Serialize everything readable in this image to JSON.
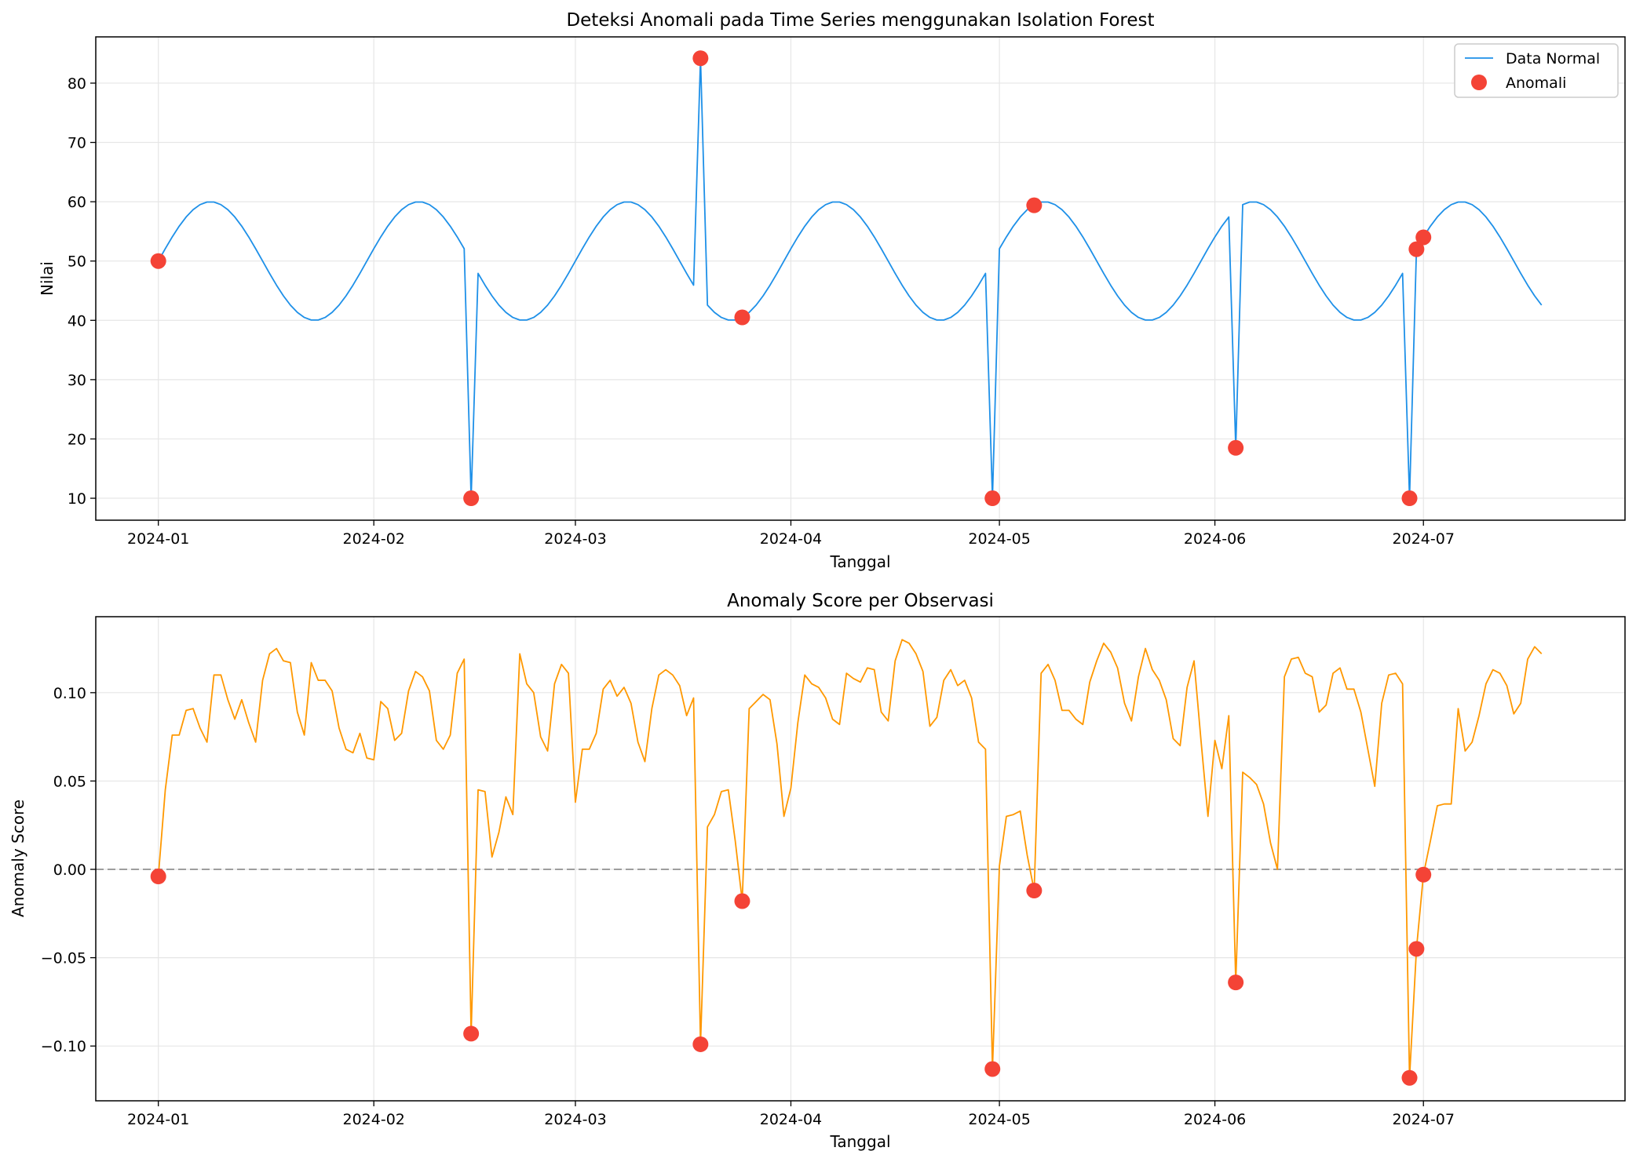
{
  "colors": {
    "normal_line": "#1e90e8",
    "anomaly_marker": "#f44336",
    "score_line": "#ff9800",
    "zero_line": "#9e9e9e",
    "grid": "#e6e6e6"
  },
  "chart_data": [
    {
      "type": "line",
      "title": "Deteksi Anomali pada Time Series menggunakan Isolation Forest",
      "xlabel": "Tanggal",
      "ylabel": "Nilai",
      "x_start_date": "2024-01-01",
      "x_step_days": 1,
      "n_points": 200,
      "xlim_days": [
        -9,
        211
      ],
      "ylim": [
        6.3,
        87.8
      ],
      "x_ticks": [
        {
          "day": 0,
          "label": "2024-01"
        },
        {
          "day": 31,
          "label": "2024-02"
        },
        {
          "day": 60,
          "label": "2024-03"
        },
        {
          "day": 91,
          "label": "2024-04"
        },
        {
          "day": 121,
          "label": "2024-05"
        },
        {
          "day": 152,
          "label": "2024-06"
        },
        {
          "day": 182,
          "label": "2024-07"
        }
      ],
      "y_ticks": [
        10,
        20,
        30,
        40,
        50,
        60,
        70,
        80
      ],
      "grid": true,
      "legend": {
        "position": "top-right",
        "entries": [
          "Data Normal",
          "Anomali"
        ]
      },
      "base_signal": {
        "mean": 50,
        "amplitude": 10,
        "period_days": 30
      },
      "spikes": [
        {
          "day": 45,
          "value": 10
        },
        {
          "day": 78,
          "value": 84.2
        },
        {
          "day": 120,
          "value": 10
        },
        {
          "day": 155,
          "value": 18.5
        },
        {
          "day": 180,
          "value": 10
        }
      ],
      "anomalies": [
        {
          "day": 0,
          "value": 50
        },
        {
          "day": 45,
          "value": 10
        },
        {
          "day": 78,
          "value": 84.2
        },
        {
          "day": 84,
          "value": 40.5
        },
        {
          "day": 120,
          "value": 10
        },
        {
          "day": 126,
          "value": 59.4
        },
        {
          "day": 155,
          "value": 18.5
        },
        {
          "day": 180,
          "value": 10
        },
        {
          "day": 181,
          "value": 52
        },
        {
          "day": 182,
          "value": 54
        }
      ]
    },
    {
      "type": "line",
      "title": "Anomaly Score per Observasi",
      "xlabel": "Tanggal",
      "ylabel": "Anomaly Score",
      "xlim_days": [
        -9,
        211
      ],
      "ylim": [
        -0.131,
        0.143
      ],
      "y_ticks": [
        {
          "value": -0.1,
          "label": "−0.10"
        },
        {
          "value": -0.05,
          "label": "−0.05"
        },
        {
          "value": 0.0,
          "label": "0.00"
        },
        {
          "value": 0.05,
          "label": "0.05"
        },
        {
          "value": 0.1,
          "label": "0.10"
        }
      ],
      "reference_line": 0,
      "grid": true,
      "score_points": [
        [
          0,
          -0.004
        ],
        [
          1,
          0.045
        ],
        [
          2,
          0.076
        ],
        [
          3,
          0.076
        ],
        [
          4,
          0.09
        ],
        [
          5,
          0.091
        ],
        [
          6,
          0.08
        ],
        [
          7,
          0.072
        ],
        [
          8,
          0.11
        ],
        [
          9,
          0.11
        ],
        [
          10,
          0.096
        ],
        [
          11,
          0.085
        ],
        [
          12,
          0.096
        ],
        [
          13,
          0.083
        ],
        [
          14,
          0.072
        ],
        [
          15,
          0.107
        ],
        [
          16,
          0.122
        ],
        [
          17,
          0.125
        ],
        [
          18,
          0.118
        ],
        [
          19,
          0.117
        ],
        [
          20,
          0.089
        ],
        [
          21,
          0.076
        ],
        [
          22,
          0.117
        ],
        [
          23,
          0.107
        ],
        [
          24,
          0.107
        ],
        [
          25,
          0.101
        ],
        [
          26,
          0.08
        ],
        [
          27,
          0.068
        ],
        [
          28,
          0.066
        ],
        [
          29,
          0.077
        ],
        [
          30,
          0.063
        ],
        [
          31,
          0.062
        ],
        [
          32,
          0.095
        ],
        [
          33,
          0.091
        ],
        [
          34,
          0.073
        ],
        [
          35,
          0.077
        ],
        [
          36,
          0.101
        ],
        [
          37,
          0.112
        ],
        [
          38,
          0.109
        ],
        [
          39,
          0.101
        ],
        [
          40,
          0.073
        ],
        [
          41,
          0.068
        ],
        [
          42,
          0.076
        ],
        [
          43,
          0.111
        ],
        [
          44,
          0.119
        ],
        [
          45,
          -0.093
        ],
        [
          46,
          0.045
        ],
        [
          47,
          0.044
        ],
        [
          48,
          0.007
        ],
        [
          49,
          0.021
        ],
        [
          50,
          0.041
        ],
        [
          51,
          0.031
        ],
        [
          52,
          0.122
        ],
        [
          53,
          0.105
        ],
        [
          54,
          0.1
        ],
        [
          55,
          0.075
        ],
        [
          56,
          0.067
        ],
        [
          57,
          0.105
        ],
        [
          58,
          0.116
        ],
        [
          59,
          0.111
        ],
        [
          60,
          0.038
        ],
        [
          61,
          0.068
        ],
        [
          62,
          0.068
        ],
        [
          63,
          0.077
        ],
        [
          64,
          0.102
        ],
        [
          65,
          0.107
        ],
        [
          66,
          0.098
        ],
        [
          67,
          0.103
        ],
        [
          68,
          0.094
        ],
        [
          69,
          0.072
        ],
        [
          70,
          0.061
        ],
        [
          71,
          0.091
        ],
        [
          72,
          0.11
        ],
        [
          73,
          0.113
        ],
        [
          74,
          0.11
        ],
        [
          75,
          0.104
        ],
        [
          76,
          0.087
        ],
        [
          77,
          0.097
        ],
        [
          78,
          -0.099
        ],
        [
          79,
          0.024
        ],
        [
          80,
          0.031
        ],
        [
          81,
          0.044
        ],
        [
          82,
          0.045
        ],
        [
          83,
          0.016
        ],
        [
          84,
          -0.018
        ],
        [
          85,
          0.091
        ],
        [
          86,
          0.095
        ],
        [
          87,
          0.099
        ],
        [
          88,
          0.096
        ],
        [
          89,
          0.071
        ],
        [
          90,
          0.03
        ],
        [
          91,
          0.046
        ],
        [
          92,
          0.083
        ],
        [
          93,
          0.11
        ],
        [
          94,
          0.105
        ],
        [
          95,
          0.103
        ],
        [
          96,
          0.097
        ],
        [
          97,
          0.085
        ],
        [
          98,
          0.082
        ],
        [
          99,
          0.111
        ],
        [
          100,
          0.108
        ],
        [
          101,
          0.106
        ],
        [
          102,
          0.114
        ],
        [
          103,
          0.113
        ],
        [
          104,
          0.089
        ],
        [
          105,
          0.084
        ],
        [
          106,
          0.118
        ],
        [
          107,
          0.13
        ],
        [
          108,
          0.128
        ],
        [
          109,
          0.122
        ],
        [
          110,
          0.112
        ],
        [
          111,
          0.081
        ],
        [
          112,
          0.086
        ],
        [
          113,
          0.107
        ],
        [
          114,
          0.113
        ],
        [
          115,
          0.104
        ],
        [
          116,
          0.107
        ],
        [
          117,
          0.097
        ],
        [
          118,
          0.072
        ],
        [
          119,
          0.068
        ],
        [
          120,
          -0.113
        ],
        [
          121,
          0.002
        ],
        [
          122,
          0.03
        ],
        [
          123,
          0.031
        ],
        [
          124,
          0.033
        ],
        [
          125,
          0.008
        ],
        [
          126,
          -0.012
        ],
        [
          127,
          0.111
        ],
        [
          128,
          0.116
        ],
        [
          129,
          0.107
        ],
        [
          130,
          0.09
        ],
        [
          131,
          0.09
        ],
        [
          132,
          0.085
        ],
        [
          133,
          0.082
        ],
        [
          134,
          0.106
        ],
        [
          135,
          0.118
        ],
        [
          136,
          0.128
        ],
        [
          137,
          0.123
        ],
        [
          138,
          0.114
        ],
        [
          139,
          0.094
        ],
        [
          140,
          0.084
        ],
        [
          141,
          0.109
        ],
        [
          142,
          0.125
        ],
        [
          143,
          0.113
        ],
        [
          144,
          0.107
        ],
        [
          145,
          0.096
        ],
        [
          146,
          0.074
        ],
        [
          147,
          0.07
        ],
        [
          148,
          0.103
        ],
        [
          149,
          0.118
        ],
        [
          150,
          0.073
        ],
        [
          151,
          0.03
        ],
        [
          152,
          0.073
        ],
        [
          153,
          0.057
        ],
        [
          154,
          0.087
        ],
        [
          155,
          -0.064
        ],
        [
          156,
          0.055
        ],
        [
          157,
          0.052
        ],
        [
          158,
          0.048
        ],
        [
          159,
          0.037
        ],
        [
          160,
          0.015
        ],
        [
          161,
          0.0
        ],
        [
          162,
          0.109
        ],
        [
          163,
          0.119
        ],
        [
          164,
          0.12
        ],
        [
          165,
          0.111
        ],
        [
          166,
          0.109
        ],
        [
          167,
          0.089
        ],
        [
          168,
          0.093
        ],
        [
          169,
          0.111
        ],
        [
          170,
          0.114
        ],
        [
          171,
          0.102
        ],
        [
          172,
          0.102
        ],
        [
          173,
          0.089
        ],
        [
          174,
          0.068
        ],
        [
          175,
          0.047
        ],
        [
          176,
          0.094
        ],
        [
          177,
          0.11
        ],
        [
          178,
          0.111
        ],
        [
          179,
          0.105
        ],
        [
          180,
          -0.118
        ],
        [
          181,
          -0.045
        ],
        [
          182,
          -0.003
        ],
        [
          183,
          0.016
        ],
        [
          184,
          0.036
        ],
        [
          185,
          0.037
        ],
        [
          186,
          0.037
        ],
        [
          187,
          0.091
        ],
        [
          188,
          0.067
        ],
        [
          189,
          0.072
        ],
        [
          190,
          0.087
        ],
        [
          191,
          0.105
        ],
        [
          192,
          0.113
        ],
        [
          193,
          0.111
        ],
        [
          194,
          0.104
        ],
        [
          195,
          0.088
        ],
        [
          196,
          0.094
        ],
        [
          197,
          0.119
        ],
        [
          198,
          0.126
        ],
        [
          199,
          0.122
        ]
      ],
      "anomalies": [
        {
          "day": 0,
          "value": -0.004
        },
        {
          "day": 45,
          "value": -0.093
        },
        {
          "day": 78,
          "value": -0.099
        },
        {
          "day": 84,
          "value": -0.018
        },
        {
          "day": 120,
          "value": -0.113
        },
        {
          "day": 126,
          "value": -0.012
        },
        {
          "day": 155,
          "value": -0.064
        },
        {
          "day": 180,
          "value": -0.118
        },
        {
          "day": 181,
          "value": -0.045
        },
        {
          "day": 182,
          "value": -0.003
        }
      ]
    }
  ]
}
